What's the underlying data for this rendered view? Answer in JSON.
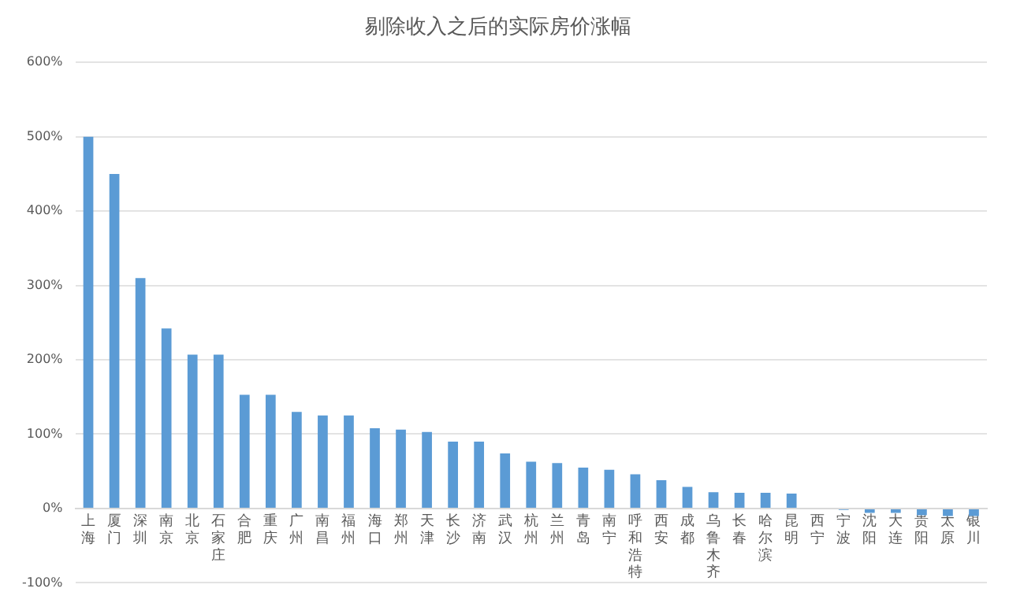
{
  "chart_data": {
    "type": "bar",
    "title": "剔除收入之后的实际房价涨幅",
    "categories": [
      "上海",
      "厦门",
      "深圳",
      "南京",
      "北京",
      "石家庄",
      "合肥",
      "重庆",
      "广州",
      "南昌",
      "福州",
      "海口",
      "郑州",
      "天津",
      "长沙",
      "济南",
      "武汉",
      "杭州",
      "兰州",
      "青岛",
      "南宁",
      "呼和浩特",
      "西安",
      "成都",
      "乌鲁木齐",
      "长春",
      "哈尔滨",
      "昆明",
      "西宁",
      "宁波",
      "沈阳",
      "大连",
      "贵阳",
      "太原",
      "银川"
    ],
    "values": [
      500,
      450,
      310,
      242,
      207,
      207,
      153,
      153,
      130,
      125,
      125,
      108,
      106,
      103,
      90,
      90,
      74,
      63,
      61,
      55,
      52,
      46,
      38,
      29,
      22,
      21,
      21,
      20,
      0,
      -2,
      -6,
      -6,
      -9,
      -10,
      -10
    ],
    "color": "#5b9bd5",
    "ylim": [
      -100,
      600
    ],
    "yticks": [
      {
        "value": -100,
        "label": "-100%"
      },
      {
        "value": 0,
        "label": "0%"
      },
      {
        "value": 100,
        "label": "100%"
      },
      {
        "value": 200,
        "label": "200%"
      },
      {
        "value": 300,
        "label": "300%"
      },
      {
        "value": 400,
        "label": "400%"
      },
      {
        "value": 500,
        "label": "500%"
      },
      {
        "value": 600,
        "label": "600%"
      }
    ],
    "grid": "y",
    "legend": false
  }
}
